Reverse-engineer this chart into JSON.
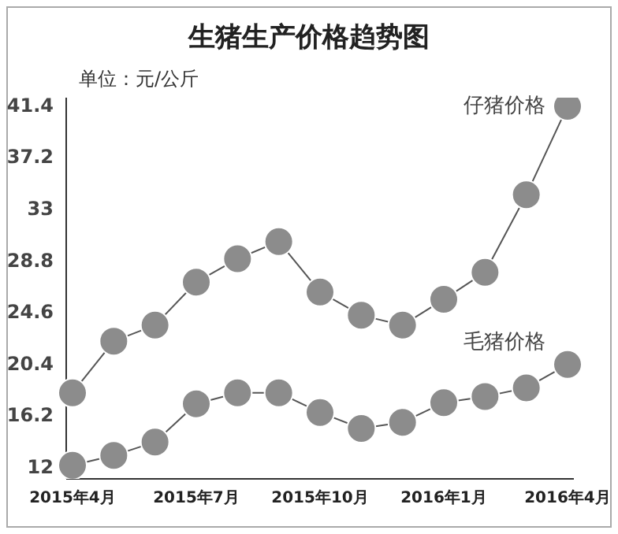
{
  "chart_data": {
    "type": "line",
    "title": "生猪生产价格趋势图",
    "subtitle": "单位：元/公斤",
    "categories": [
      "2015年4月",
      null,
      null,
      "2015年7月",
      null,
      null,
      "2015年10月",
      null,
      null,
      "2016年1月",
      null,
      null,
      "2016年4月"
    ],
    "series": [
      {
        "name": "仔猪价格",
        "color": "#8c8c8c",
        "values": [
          18.0,
          22.2,
          23.5,
          27.0,
          28.9,
          30.3,
          26.2,
          24.3,
          23.5,
          25.6,
          27.8,
          34.1,
          41.3
        ]
      },
      {
        "name": "毛猪价格",
        "color": "#8c8c8c",
        "values": [
          12.1,
          12.9,
          14.0,
          17.1,
          18.0,
          18.0,
          16.4,
          15.1,
          15.6,
          17.2,
          17.7,
          18.4,
          20.3
        ]
      }
    ],
    "ylim": [
      11,
      42
    ],
    "yticks": [
      12,
      16.2,
      20.4,
      24.6,
      28.8,
      33,
      37.2,
      41.4
    ],
    "grid": false,
    "marker": "circle",
    "line_style": "solid"
  }
}
